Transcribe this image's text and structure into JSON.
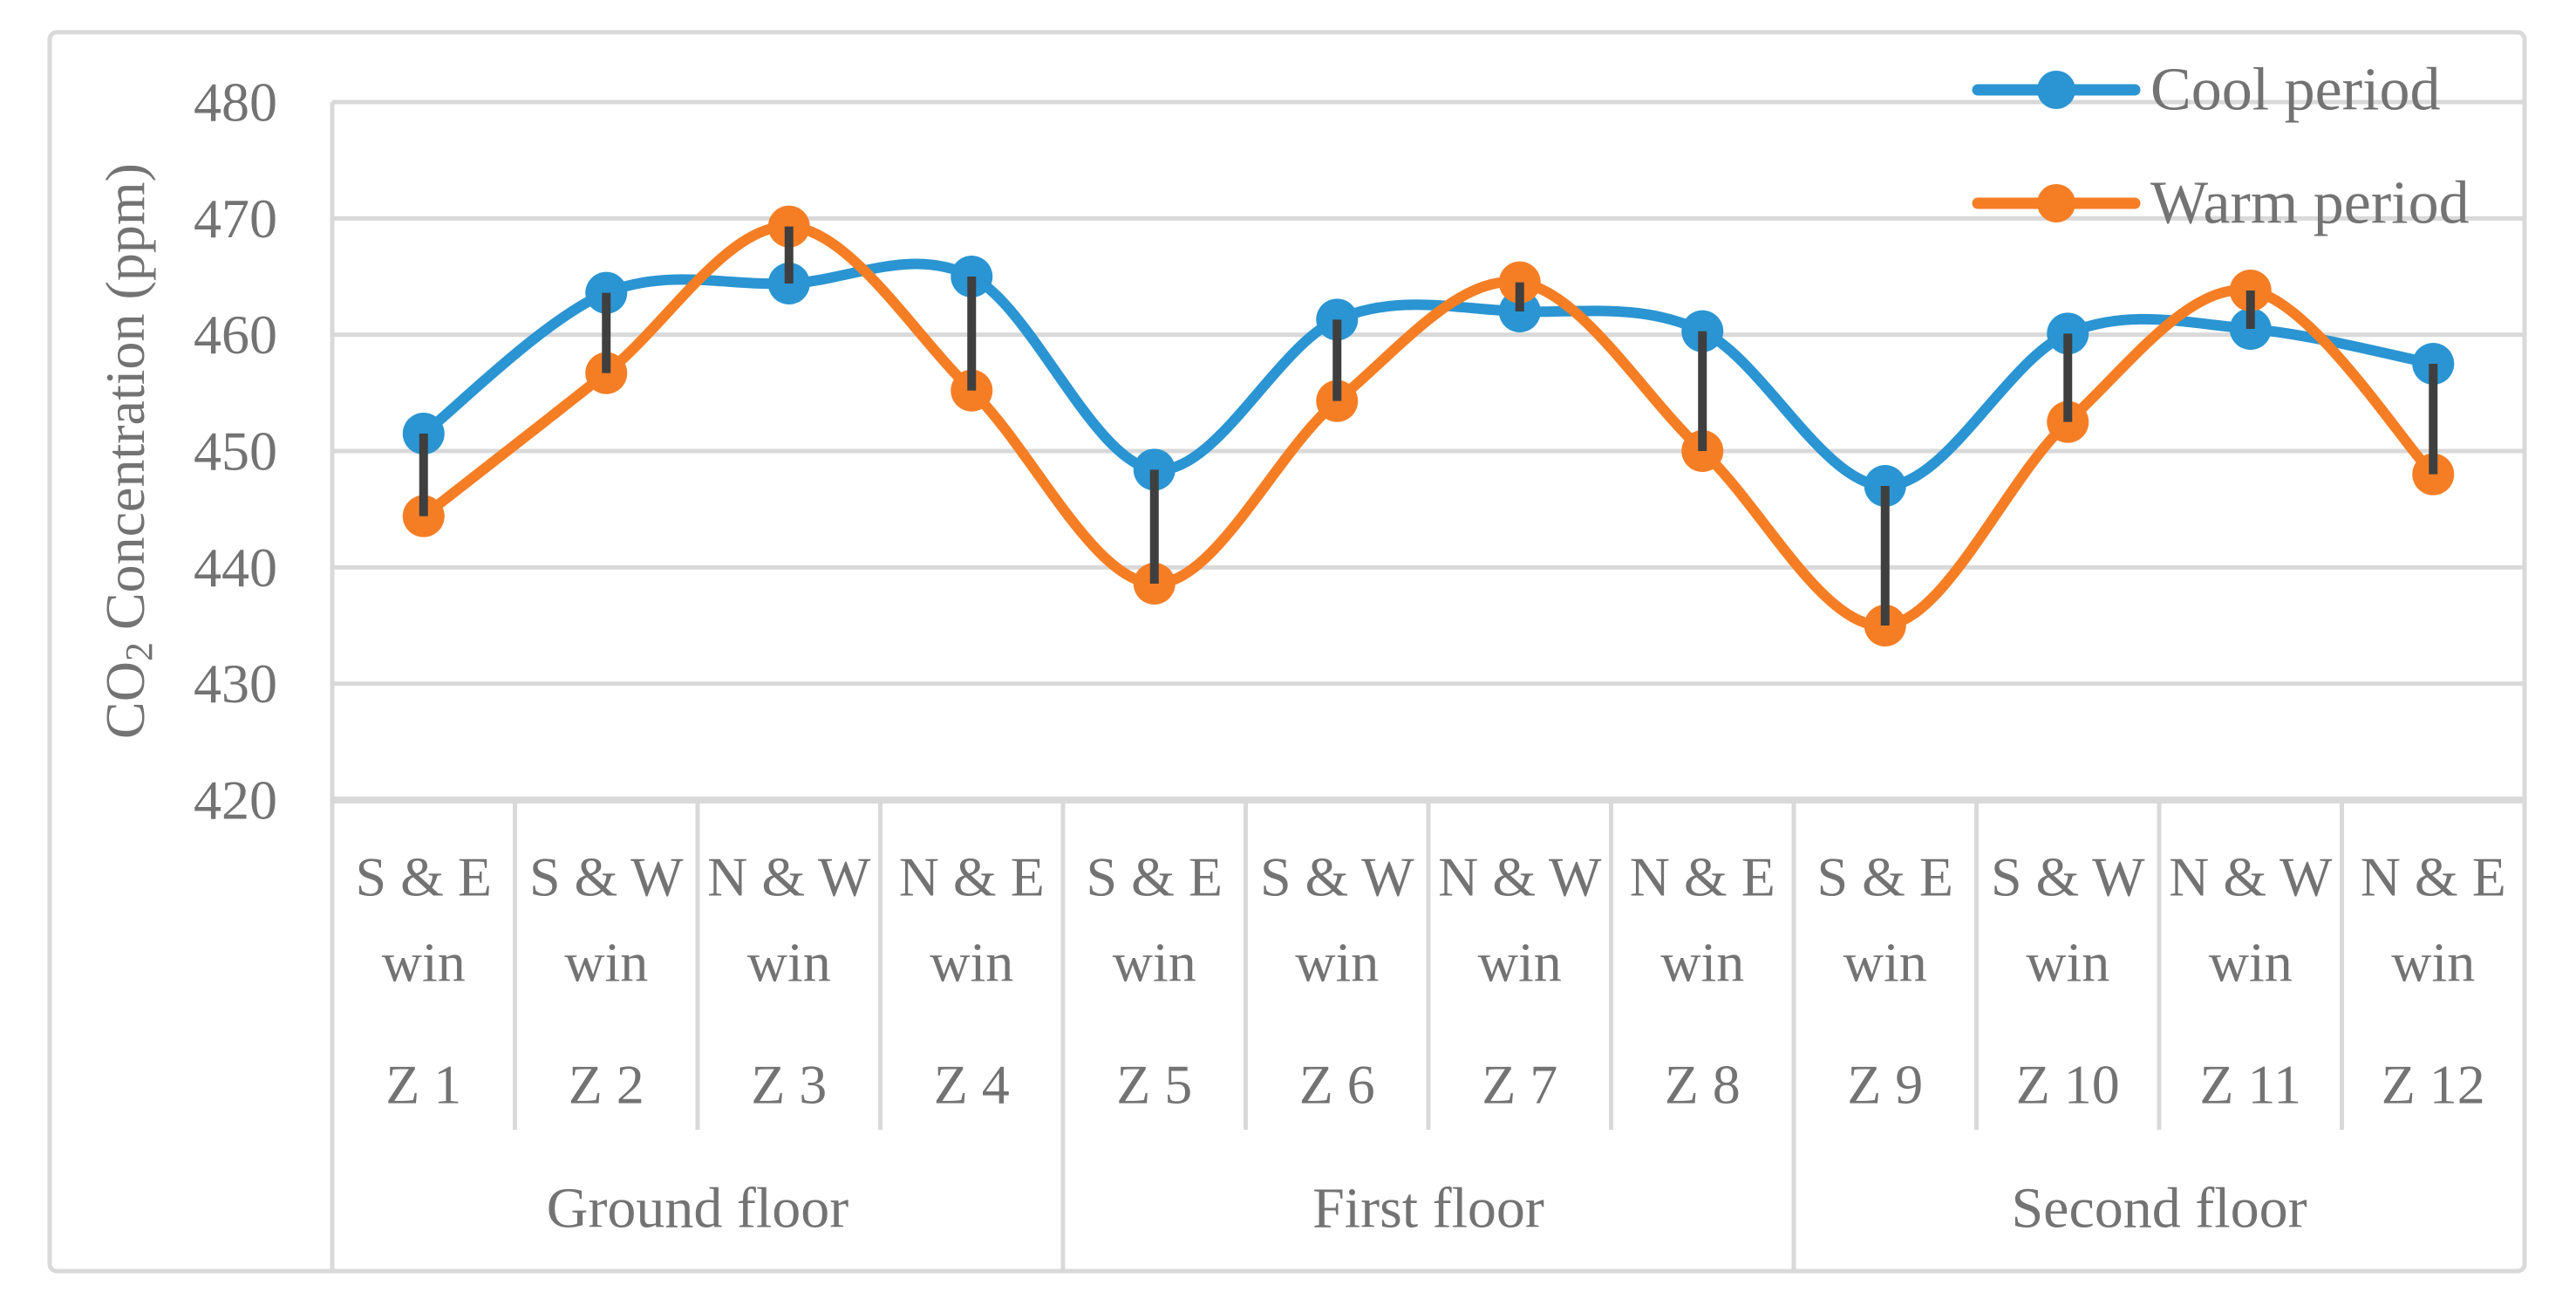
{
  "figure": {
    "background": "#ffffff",
    "border_color": "#d9d9d9",
    "grid_color": "#d9d9d9",
    "axis_line_color": "#d9d9d9",
    "text_color": "#737373",
    "error_bar_color": "#3f3f3f"
  },
  "chart_data": {
    "type": "line",
    "title": "",
    "xlabel": "",
    "ylabel": "CO2 Concentration (ppm)",
    "ylabel_parts": {
      "prefix": "CO",
      "subscript": "2",
      "suffix": "Concentration (ppm)"
    },
    "ylim": [
      420,
      480
    ],
    "yticks": [
      480,
      470,
      460,
      450,
      440,
      430,
      420
    ],
    "grid": true,
    "smoothed_lines": true,
    "legend_position": "top-right",
    "categories": [
      {
        "orientation": "S & E",
        "win": "win",
        "zone": "Z 1"
      },
      {
        "orientation": "S & W",
        "win": "win",
        "zone": "Z 2"
      },
      {
        "orientation": "N & W",
        "win": "win",
        "zone": "Z 3"
      },
      {
        "orientation": "N & E",
        "win": "win",
        "zone": "Z 4"
      },
      {
        "orientation": "S & E",
        "win": "win",
        "zone": "Z 5"
      },
      {
        "orientation": "S & W",
        "win": "win",
        "zone": "Z 6"
      },
      {
        "orientation": "N & W",
        "win": "win",
        "zone": "Z 7"
      },
      {
        "orientation": "N & E",
        "win": "win",
        "zone": "Z 8"
      },
      {
        "orientation": "S & E",
        "win": "win",
        "zone": "Z 9"
      },
      {
        "orientation": "S & W",
        "win": "win",
        "zone": "Z 10"
      },
      {
        "orientation": "N & W",
        "win": "win",
        "zone": "Z 11"
      },
      {
        "orientation": "N & E",
        "win": "win",
        "zone": "Z 12"
      }
    ],
    "floors": [
      {
        "label": "Ground floor",
        "span": 4
      },
      {
        "label": "First floor",
        "span": 4
      },
      {
        "label": "Second floor",
        "span": 4
      }
    ],
    "series": [
      {
        "name": "Cool period",
        "color": "#2a95d2",
        "values": [
          451.5,
          463.6,
          464.4,
          465.0,
          448.4,
          461.3,
          462.0,
          460.3,
          447.0,
          460.1,
          460.5,
          457.5
        ]
      },
      {
        "name": "Warm period",
        "color": "#f57e25",
        "values": [
          444.4,
          456.7,
          469.3,
          455.2,
          438.6,
          454.3,
          464.5,
          450.0,
          435.0,
          452.5,
          463.8,
          448.0
        ]
      }
    ],
    "error_bars": {
      "style": "vertical line connecting Cool and Warm values at each zone",
      "color": "#3f3f3f"
    }
  }
}
